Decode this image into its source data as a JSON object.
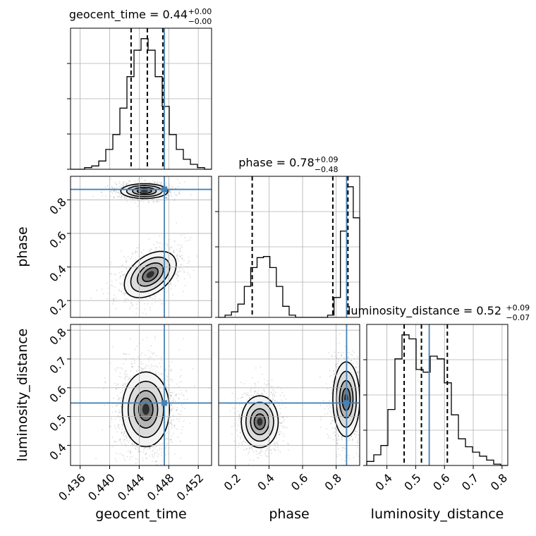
{
  "chart_data": {
    "type": "corner",
    "parameters": [
      "geocent_time",
      "phase",
      "luminosity_distance"
    ],
    "truths": {
      "geocent_time": 0.4474,
      "phase": 0.862,
      "luminosity_distance": 0.547
    },
    "ranges": {
      "geocent_time": [
        0.4347,
        0.4538
      ],
      "phase": [
        0.1,
        0.94
      ],
      "luminosity_distance": [
        0.33,
        0.82
      ]
    },
    "ticks": {
      "geocent_time": {
        "values": [
          0.436,
          0.44,
          0.444,
          0.448,
          0.452
        ],
        "labels": [
          "0.436",
          "0.440",
          "0.444",
          "0.448",
          "0.452"
        ]
      },
      "phase": {
        "values": [
          0.2,
          0.4,
          0.6,
          0.8
        ],
        "labels": [
          "0.2",
          "0.4",
          "0.6",
          "0.8"
        ]
      },
      "luminosity_distance": {
        "values": [
          0.4,
          0.5,
          0.6,
          0.7,
          0.8
        ],
        "labels": [
          "0.4",
          "0.5",
          "0.6",
          "0.7",
          "0.8"
        ]
      }
    },
    "titles": {
      "geocent_time": {
        "name": "geocent_time",
        "median": "0.44",
        "plus": "+0.00",
        "minus": "−0.00"
      },
      "phase": {
        "name": "phase",
        "median": "0.78",
        "plus": "+0.09",
        "minus": "−0.48"
      },
      "luminosity_distance": {
        "name": "luminosity_distance",
        "median": "0.52",
        "plus": "+0.09",
        "minus": "−0.07"
      }
    },
    "quantiles": {
      "geocent_time": [
        0.4429,
        0.4451,
        0.4472
      ],
      "phase": [
        0.3,
        0.78,
        0.87
      ],
      "luminosity_distance": [
        0.46,
        0.52,
        0.61
      ]
    },
    "histograms": {
      "geocent_time": [
        0,
        0,
        1,
        2,
        5,
        12,
        21,
        37,
        56,
        72,
        79,
        72,
        56,
        38,
        21,
        12,
        6,
        3,
        1,
        0
      ],
      "phase": [
        0,
        2,
        5,
        12,
        28,
        45,
        54,
        55,
        45,
        28,
        10,
        2,
        0,
        0,
        0,
        0,
        0,
        2,
        18,
        78,
        118,
        90
      ],
      "luminosity_distance": [
        3,
        8,
        15,
        42,
        80,
        98,
        95,
        72,
        70,
        82,
        80,
        62,
        38,
        20,
        14,
        10,
        7,
        4,
        1,
        0
      ]
    },
    "blobs": [
      {
        "panel": "geocent_time-phase",
        "cx": 0.4447,
        "cy": 0.852,
        "sx": 0.0016,
        "sy": 0.022,
        "rho": 0.0,
        "n": 900
      },
      {
        "panel": "geocent_time-phase",
        "cx": 0.4455,
        "cy": 0.355,
        "sx": 0.002,
        "sy": 0.055,
        "rho": 0.55,
        "n": 900
      },
      {
        "panel": "geocent_time-luminosity_distance",
        "cx": 0.4449,
        "cy": 0.525,
        "sx": 0.0016,
        "sy": 0.065,
        "rho": 0.0,
        "n": 1800
      },
      {
        "panel": "phase-luminosity_distance",
        "cx": 0.345,
        "cy": 0.482,
        "sx": 0.055,
        "sy": 0.045,
        "rho": 0.0,
        "n": 900
      },
      {
        "panel": "phase-luminosity_distance",
        "cx": 0.86,
        "cy": 0.56,
        "sx": 0.04,
        "sy": 0.065,
        "rho": 0.0,
        "n": 900
      }
    ],
    "grid": true
  }
}
